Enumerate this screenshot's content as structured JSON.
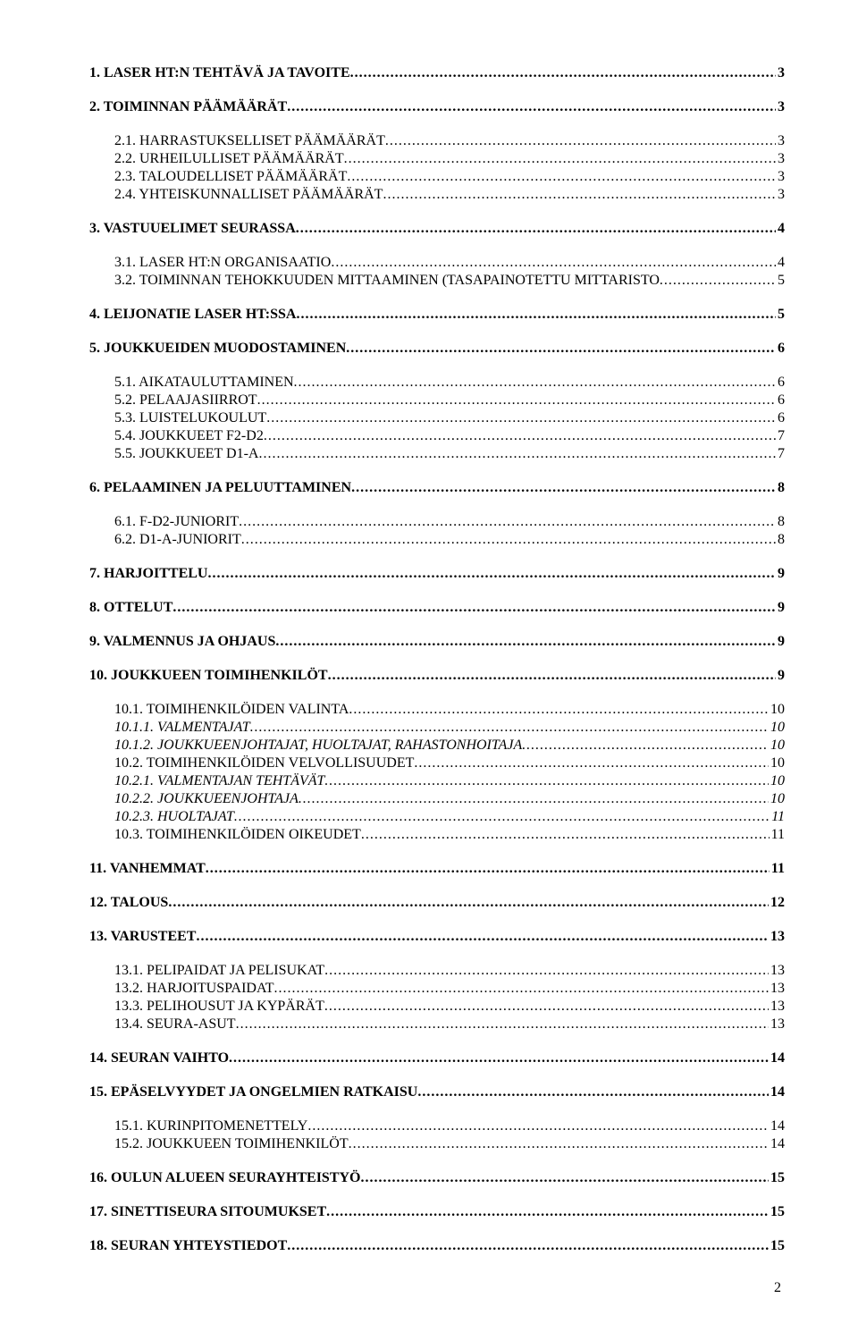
{
  "toc": [
    {
      "level": 1,
      "label": "1. LASER HT:N TEHTÄVÄ JA TAVOITE",
      "page": "3",
      "gap": false
    },
    {
      "level": 1,
      "label": "2. TOIMINNAN PÄÄMÄÄRÄT",
      "page": "3",
      "gap": true
    },
    {
      "level": 2,
      "label": "2.1. HARRASTUKSELLISET PÄÄMÄÄRÄT",
      "page": "3",
      "gap": true
    },
    {
      "level": 2,
      "label": "2.2. URHEILULLISET PÄÄMÄÄRÄT",
      "page": "3",
      "gap": false
    },
    {
      "level": 2,
      "label": "2.3. TALOUDELLISET PÄÄMÄÄRÄT",
      "page": "3",
      "gap": false
    },
    {
      "level": 2,
      "label": "2.4. YHTEISKUNNALLISET PÄÄMÄÄRÄT",
      "page": "3",
      "gap": false
    },
    {
      "level": 1,
      "label": "3. VASTUUELIMET SEURASSA",
      "page": "4",
      "gap": true
    },
    {
      "level": 2,
      "label": "3.1. LASER HT:N ORGANISAATIO",
      "page": "4",
      "gap": true
    },
    {
      "level": 2,
      "label": "3.2. TOIMINNAN TEHOKKUUDEN MITTAAMINEN (TASAPAINOTETTU MITTARISTO",
      "page": "5",
      "gap": false
    },
    {
      "level": 1,
      "label": "4. LEIJONATIE LASER HT:SSA",
      "page": "5",
      "gap": true
    },
    {
      "level": 1,
      "label": "5. JOUKKUEIDEN MUODOSTAMINEN",
      "page": "6",
      "gap": true
    },
    {
      "level": 2,
      "label": "5.1. AIKATAULUTTAMINEN",
      "page": "6",
      "gap": true
    },
    {
      "level": 2,
      "label": "5.2. PELAAJASIIRROT",
      "page": "6",
      "gap": false
    },
    {
      "level": 2,
      "label": "5.3. LUISTELUKOULUT",
      "page": "6",
      "gap": false
    },
    {
      "level": 2,
      "label": "5.4. JOUKKUEET F2-D2",
      "page": "7",
      "gap": false
    },
    {
      "level": 2,
      "label": "5.5. JOUKKUEET D1-A",
      "page": "7",
      "gap": false
    },
    {
      "level": 1,
      "label": "6. PELAAMINEN JA PELUUTTAMINEN",
      "page": "8",
      "gap": true
    },
    {
      "level": 2,
      "label": "6.1. F-D2-JUNIORIT",
      "page": "8",
      "gap": true
    },
    {
      "level": 2,
      "label": "6.2. D1-A-JUNIORIT",
      "page": "8",
      "gap": false
    },
    {
      "level": 1,
      "label": "7. HARJOITTELU",
      "page": "9",
      "gap": true
    },
    {
      "level": 1,
      "label": "8. OTTELUT",
      "page": "9",
      "gap": true
    },
    {
      "level": 1,
      "label": "9. VALMENNUS JA OHJAUS",
      "page": "9",
      "gap": true
    },
    {
      "level": 1,
      "label": "10. JOUKKUEEN TOIMIHENKILÖT",
      "page": "9",
      "gap": true
    },
    {
      "level": 2,
      "label": "10.1. TOIMIHENKILÖIDEN VALINTA",
      "page": "10",
      "gap": true
    },
    {
      "level": 3,
      "label": "10.1.1. VALMENTAJAT",
      "page": "10",
      "gap": false
    },
    {
      "level": 3,
      "label": "10.1.2. JOUKKUEENJOHTAJAT, HUOLTAJAT, RAHASTONHOITAJA",
      "page": "10",
      "gap": false
    },
    {
      "level": 2,
      "label": "10.2. TOIMIHENKILÖIDEN VELVOLLISUUDET",
      "page": "10",
      "gap": false
    },
    {
      "level": 3,
      "label": "10.2.1. VALMENTAJAN TEHTÄVÄT",
      "page": "10",
      "gap": false
    },
    {
      "level": 3,
      "label": "10.2.2. JOUKKUEENJOHTAJA",
      "page": "10",
      "gap": false
    },
    {
      "level": 3,
      "label": "10.2.3. HUOLTAJAT",
      "page": "11",
      "gap": false
    },
    {
      "level": 2,
      "label": "10.3. TOIMIHENKILÖIDEN OIKEUDET",
      "page": "11",
      "gap": false
    },
    {
      "level": 1,
      "label": "11. VANHEMMAT",
      "page": "11",
      "gap": true
    },
    {
      "level": 1,
      "label": "12. TALOUS",
      "page": "12",
      "gap": true
    },
    {
      "level": 1,
      "label": "13. VARUSTEET",
      "page": "13",
      "gap": true
    },
    {
      "level": 2,
      "label": "13.1. PELIPAIDAT JA PELISUKAT",
      "page": "13",
      "gap": true
    },
    {
      "level": 2,
      "label": "13.2. HARJOITUSPAIDAT",
      "page": "13",
      "gap": false
    },
    {
      "level": 2,
      "label": "13.3. PELIHOUSUT JA KYPÄRÄT",
      "page": "13",
      "gap": false
    },
    {
      "level": 2,
      "label": "13.4. SEURA-ASUT",
      "page": "13",
      "gap": false
    },
    {
      "level": 1,
      "label": "14. SEURAN VAIHTO",
      "page": "14",
      "gap": true
    },
    {
      "level": 1,
      "label": "15. EPÄSELVYYDET JA ONGELMIEN RATKAISU",
      "page": "14",
      "gap": true
    },
    {
      "level": 2,
      "label": "15.1. KURINPITOMENETTELY",
      "page": "14",
      "gap": true
    },
    {
      "level": 2,
      "label": "15.2. JOUKKUEEN TOIMIHENKILÖT",
      "page": "14",
      "gap": false
    },
    {
      "level": 1,
      "label": "16. OULUN ALUEEN SEURAYHTEISTYÖ",
      "page": "15",
      "gap": true
    },
    {
      "level": 1,
      "label": "17. SINETTISEURA SITOUMUKSET",
      "page": "15",
      "gap": true
    },
    {
      "level": 1,
      "label": "18. SEURAN YHTEYSTIEDOT",
      "page": "15",
      "gap": true
    }
  ],
  "footer_page": "2"
}
